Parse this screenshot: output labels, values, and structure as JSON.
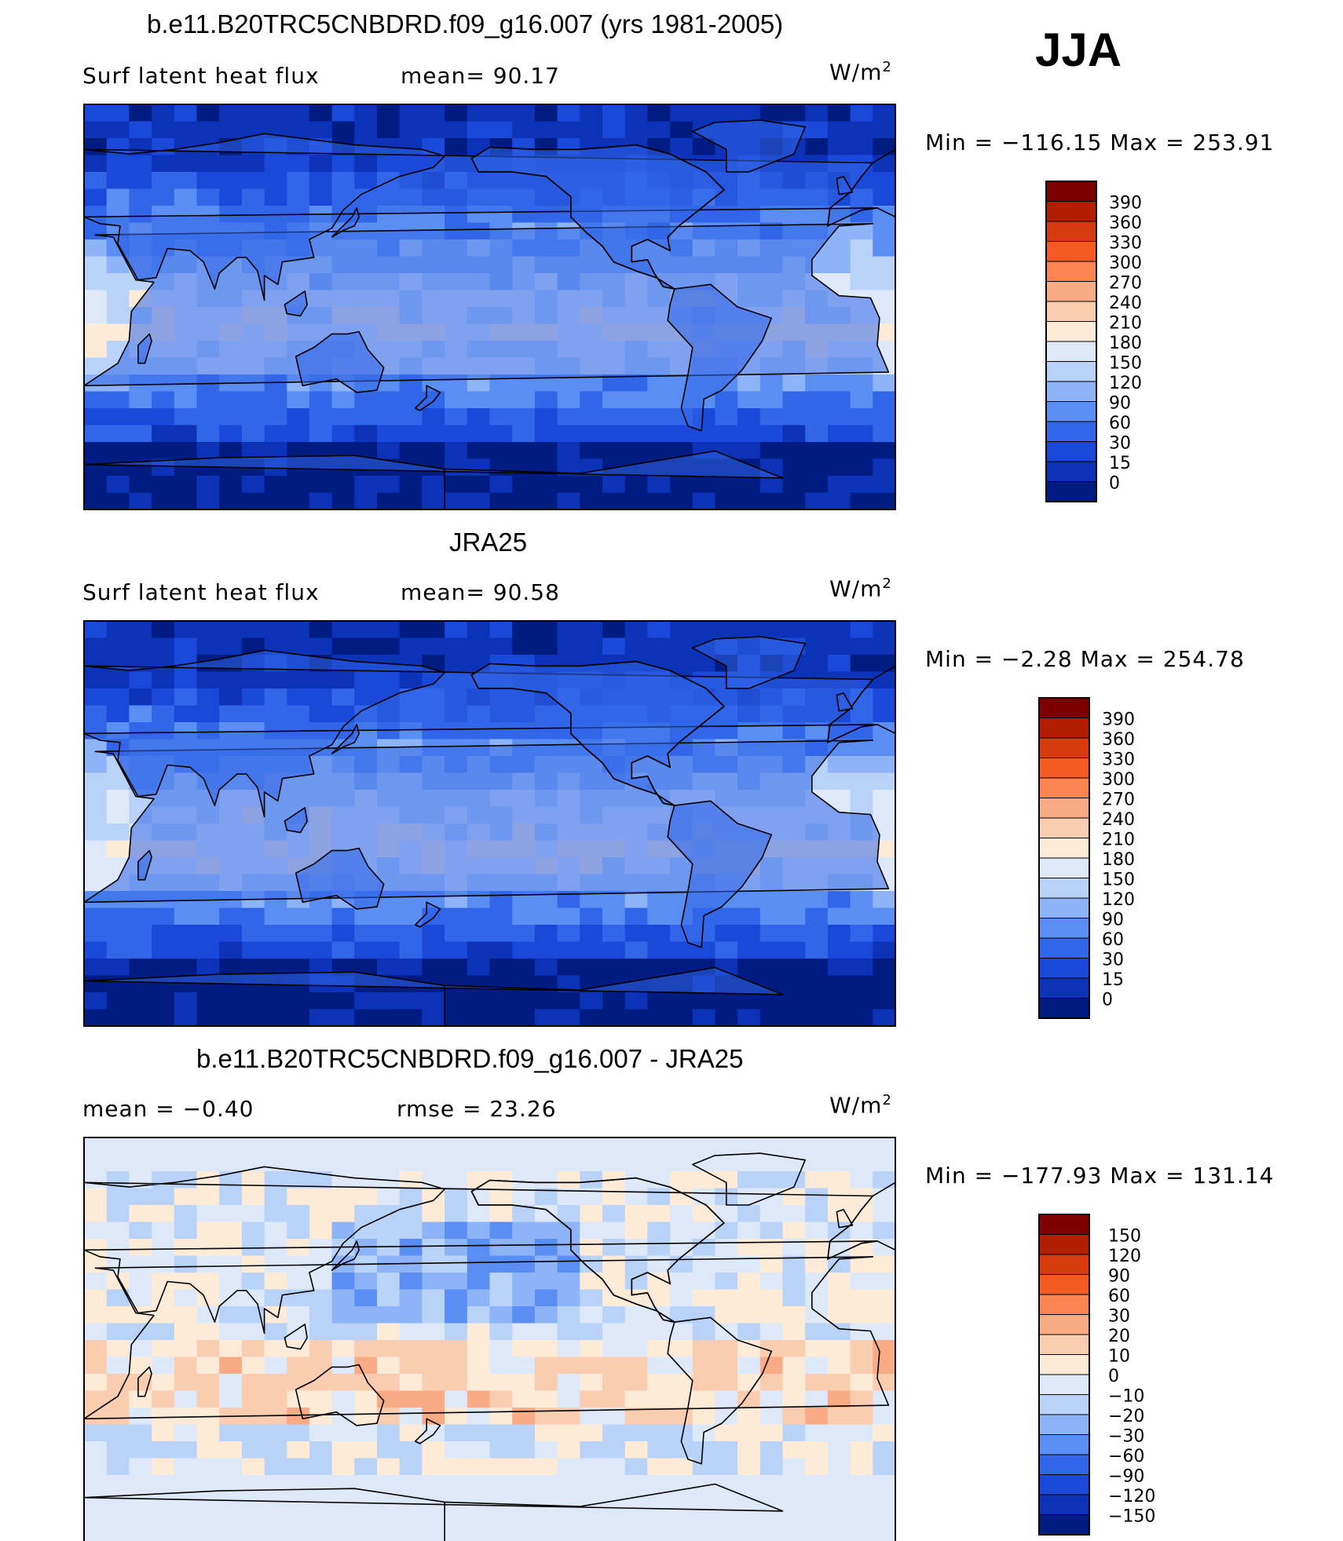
{
  "season": "JJA",
  "chart_data": [
    {
      "type": "heatmap",
      "title": "b.e11.B20TRC5CNBDRD.f09_g16.007 (yrs 1981-2005)",
      "left_label": "Surf latent heat flux",
      "center_label": "mean=  90.17",
      "units": "W/m",
      "units_sup": "2",
      "min_max": "Min  =  −116.15  Max  =  253.91",
      "mean": 90.17,
      "min": -116.15,
      "max": 253.91,
      "colorbar": {
        "levels": [
          "390",
          "360",
          "330",
          "300",
          "270",
          "240",
          "210",
          "180",
          "150",
          "120",
          "90",
          "60",
          "30",
          "15",
          "0"
        ],
        "colors": [
          "#7d0000",
          "#b21e00",
          "#d83a10",
          "#f45a24",
          "#fb8450",
          "#f8ab84",
          "#fbcdb0",
          "#fdebd8",
          "#dde9f9",
          "#b8d2f8",
          "#8db4f7",
          "#5a8ef3",
          "#3266e8",
          "#1a48d8",
          "#0c32b8",
          "#001c82"
        ]
      },
      "map_palette": [
        "#001c82",
        "#0c32b8",
        "#1a48d8",
        "#3266e8",
        "#5a8ef3",
        "#8db4f7",
        "#b8d2f8",
        "#dde9f9",
        "#fdebd8",
        "#fbcdb0",
        "#f8ab84"
      ]
    },
    {
      "type": "heatmap",
      "title": "JRA25",
      "left_label": "Surf latent heat flux",
      "center_label": "mean=  90.58",
      "units": "W/m",
      "units_sup": "2",
      "min_max": "Min  =    −2.28  Max  =  254.78",
      "mean": 90.58,
      "min": -2.28,
      "max": 254.78,
      "colorbar": {
        "levels": [
          "390",
          "360",
          "330",
          "300",
          "270",
          "240",
          "210",
          "180",
          "150",
          "120",
          "90",
          "60",
          "30",
          "15",
          "0"
        ],
        "colors": [
          "#7d0000",
          "#b21e00",
          "#d83a10",
          "#f45a24",
          "#fb8450",
          "#f8ab84",
          "#fbcdb0",
          "#fdebd8",
          "#dde9f9",
          "#b8d2f8",
          "#8db4f7",
          "#5a8ef3",
          "#3266e8",
          "#1a48d8",
          "#0c32b8",
          "#001c82"
        ]
      },
      "map_palette": [
        "#001c82",
        "#0c32b8",
        "#1a48d8",
        "#3266e8",
        "#5a8ef3",
        "#8db4f7",
        "#b8d2f8",
        "#dde9f9",
        "#fdebd8",
        "#fbcdb0",
        "#f8ab84"
      ]
    },
    {
      "type": "heatmap",
      "title": "b.e11.B20TRC5CNBDRD.f09_g16.007 - JRA25",
      "left_label": "mean =   −0.40",
      "center_label": "rmse =   23.26",
      "units": "W/m",
      "units_sup": "2",
      "min_max": "Min  =  −177.93  Max  =  131.14",
      "mean": -0.4,
      "rmse": 23.26,
      "min": -177.93,
      "max": 131.14,
      "colorbar": {
        "levels": [
          "150",
          "120",
          "90",
          "60",
          "30",
          "20",
          "10",
          "0",
          "−10",
          "−20",
          "−30",
          "−60",
          "−90",
          "−120",
          "−150"
        ],
        "colors": [
          "#7d0000",
          "#b21e00",
          "#d83a10",
          "#f45a24",
          "#fb8450",
          "#f8ab84",
          "#fbcdb0",
          "#fdebd8",
          "#dde9f9",
          "#b8d2f8",
          "#8db4f7",
          "#5a8ef3",
          "#3266e8",
          "#1a48d8",
          "#0c32b8",
          "#001c82"
        ]
      },
      "map_palette": [
        "#1a48d8",
        "#3266e8",
        "#5a8ef3",
        "#8db4f7",
        "#b8d2f8",
        "#dde9f9",
        "#fdebd8",
        "#fbcdb0",
        "#f8ab84",
        "#fb8450",
        "#f45a24"
      ]
    }
  ]
}
